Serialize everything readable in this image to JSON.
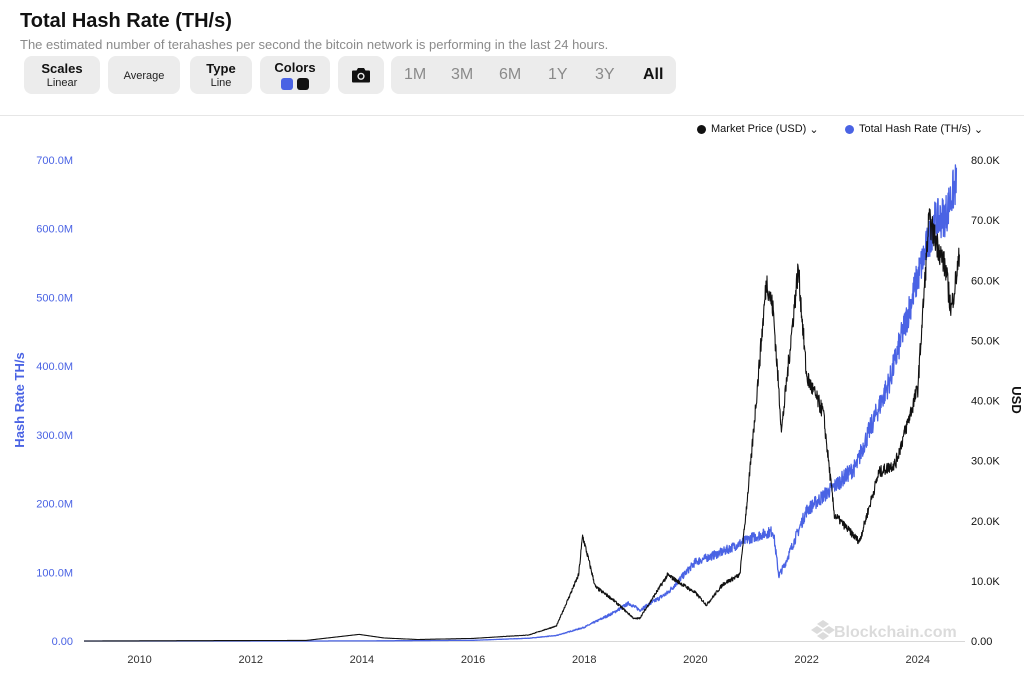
{
  "header": {
    "title": "Total Hash Rate (TH/s)",
    "subtitle": "The estimated number of terahashes per second the bitcoin network is performing in the last 24 hours."
  },
  "toolbar": {
    "scales": {
      "label": "Scales",
      "value": "Linear"
    },
    "average": {
      "label": "Average"
    },
    "type": {
      "label": "Type",
      "value": "Line"
    },
    "colors": {
      "label": "Colors",
      "swatches": [
        "#4a63e4",
        "#111111"
      ]
    },
    "camera_icon": "camera-icon",
    "ranges": [
      "1M",
      "3M",
      "6M",
      "1Y",
      "3Y",
      "All"
    ],
    "active_range": "All"
  },
  "legend": {
    "market_price": "Market Price (USD)",
    "hash_rate": "Total Hash Rate (TH/s)"
  },
  "watermark": "Blockchain.com",
  "chart_data": {
    "type": "line",
    "x_axis": {
      "ticks": [
        "2010",
        "2012",
        "2014",
        "2016",
        "2018",
        "2020",
        "2022",
        "2024"
      ],
      "range": [
        2009.0,
        2024.85
      ]
    },
    "y_left": {
      "label": "Hash Rate TH/s",
      "ticks": [
        "0.00",
        "100.0M",
        "200.0M",
        "300.0M",
        "400.0M",
        "500.0M",
        "600.0M",
        "700.0M"
      ],
      "range": [
        0,
        700000000
      ]
    },
    "y_right": {
      "label": "USD",
      "ticks": [
        "0.00",
        "10.0K",
        "20.0K",
        "30.0K",
        "40.0K",
        "50.0K",
        "60.0K",
        "70.0K",
        "80.0K"
      ],
      "range": [
        0,
        80000
      ]
    },
    "grid": false,
    "legend_position": "top-right",
    "series": [
      {
        "name": "Total Hash Rate (TH/s)",
        "axis": "left",
        "color": "#4a63e4",
        "x": [
          2009.0,
          2012.0,
          2014.0,
          2016.0,
          2017.0,
          2017.5,
          2018.0,
          2018.5,
          2018.8,
          2019.0,
          2019.5,
          2020.0,
          2020.5,
          2021.0,
          2021.4,
          2021.5,
          2021.6,
          2022.0,
          2022.5,
          2022.9,
          2023.0,
          2023.5,
          2024.0,
          2024.3,
          2024.5,
          2024.7
        ],
        "y": [
          0,
          10000,
          100000,
          1000000,
          4000000,
          8000000,
          20000000,
          40000000,
          55000000,
          45000000,
          70000000,
          115000000,
          130000000,
          150000000,
          160000000,
          95000000,
          110000000,
          190000000,
          225000000,
          255000000,
          280000000,
          380000000,
          530000000,
          610000000,
          620000000,
          670000000
        ]
      },
      {
        "name": "Market Price (USD)",
        "axis": "right",
        "color": "#111111",
        "x": [
          2009.0,
          2013.0,
          2013.95,
          2014.4,
          2015.0,
          2016.0,
          2017.0,
          2017.5,
          2017.9,
          2017.97,
          2018.2,
          2018.5,
          2018.9,
          2019.0,
          2019.5,
          2020.0,
          2020.2,
          2020.5,
          2020.8,
          2021.0,
          2021.28,
          2021.4,
          2021.55,
          2021.85,
          2022.0,
          2022.3,
          2022.5,
          2022.95,
          2023.3,
          2023.6,
          2024.0,
          2024.2,
          2024.5,
          2024.6,
          2024.75
        ],
        "y": [
          0,
          100,
          1100,
          500,
          250,
          430,
          1000,
          2500,
          11000,
          17500,
          9000,
          7000,
          3700,
          3800,
          11000,
          8000,
          6000,
          9500,
          11000,
          30000,
          60000,
          55000,
          35000,
          62000,
          44000,
          38000,
          21000,
          16500,
          28000,
          29500,
          42000,
          70000,
          62000,
          55000,
          64000
        ]
      }
    ]
  }
}
